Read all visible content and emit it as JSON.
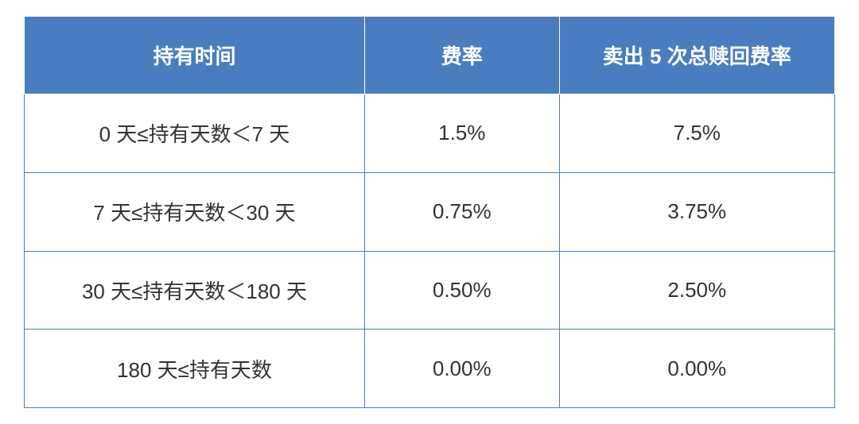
{
  "table": {
    "type": "table",
    "columns": [
      "持有时间",
      "费率",
      "卖出 5 次总赎回费率"
    ],
    "column_widths": [
      "42%",
      "24%",
      "34%"
    ],
    "rows": [
      [
        "0 天≤持有天数＜7 天",
        "1.5%",
        "7.5%"
      ],
      [
        "7 天≤持有天数＜30 天",
        "0.75%",
        "3.75%"
      ],
      [
        "30 天≤持有天数＜180 天",
        "0.50%",
        "2.50%"
      ],
      [
        "180 天≤持有天数",
        "0.00%",
        "0.00%"
      ]
    ],
    "header_bg": "#4a7dc0",
    "header_color": "#ffffff",
    "header_fontsize": 26,
    "header_fontweight": "bold",
    "header_border_color": "#ffffff",
    "body_bg": "#ffffff",
    "body_color": "#333333",
    "body_fontsize": 26,
    "body_border_color": "#4a7dc0",
    "border_width": 1,
    "row_height_header": 98,
    "row_height_body": 98
  }
}
